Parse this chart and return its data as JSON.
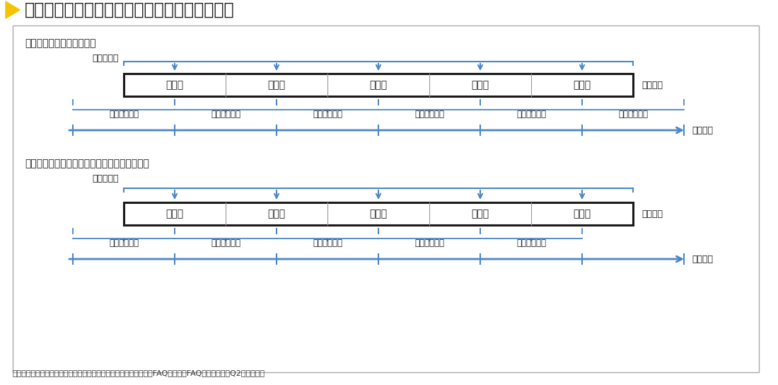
{
  "title": "＜図解＞保険期間及び当期分支払保険料の関係",
  "title_color": "#1a1a1a",
  "title_arrow_color": "#f5c400",
  "bg_color": "#ffffff",
  "blue": "#4a86c8",
  "box_border": "#1a1a1a",
  "section1_label": "＜当期分支払保険料の額＞",
  "section2_label": "＜短期前払費用として損金算入している場合＞",
  "hoken_label": "保険料支払",
  "hoken_kikan": "保険期間",
  "jigyo_nendo": "事業年度",
  "kikan_label": "各期間",
  "toki_label": "当期分保険料",
  "citation": "出典：「定期保険及び第三分野保険に係る保険料の取扱いに関するFAQ（以下「FAQ」と表記）〔Q2〕」国税庁",
  "n_periods": 5,
  "n_payments1": 6,
  "n_payments2": 5
}
